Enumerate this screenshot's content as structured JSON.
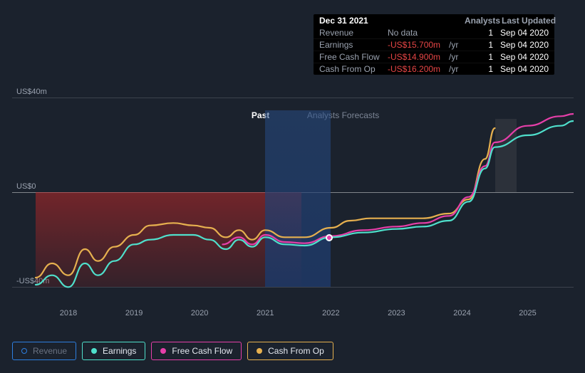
{
  "tooltip": {
    "date": "Dec 31 2021",
    "header_analysts": "Analysts",
    "header_updated": "Last Updated",
    "rows": [
      {
        "label": "Revenue",
        "value": "No data",
        "suffix": "",
        "neg": false,
        "nodata": true,
        "analysts": "1",
        "updated": "Sep 04 2020"
      },
      {
        "label": "Earnings",
        "value": "-US$15.700m",
        "suffix": "/yr",
        "neg": true,
        "nodata": false,
        "analysts": "1",
        "updated": "Sep 04 2020"
      },
      {
        "label": "Free Cash Flow",
        "value": "-US$14.900m",
        "suffix": "/yr",
        "neg": true,
        "nodata": false,
        "analysts": "1",
        "updated": "Sep 04 2020"
      },
      {
        "label": "Cash From Op",
        "value": "-US$16.200m",
        "suffix": "/yr",
        "neg": true,
        "nodata": false,
        "analysts": "1",
        "updated": "Sep 04 2020"
      }
    ]
  },
  "chart": {
    "y_axis": {
      "labels": [
        {
          "text": "US$40m",
          "value": 40
        },
        {
          "text": "US$0",
          "value": 0
        },
        {
          "text": "-US$40m",
          "value": -40
        }
      ],
      "min": -45,
      "max": 45
    },
    "x_axis": {
      "ticks": [
        "2018",
        "2019",
        "2020",
        "2021",
        "2022",
        "2023",
        "2024",
        "2025"
      ],
      "min": 2017.5,
      "max": 2025.7
    },
    "past_label": "Past",
    "forecast_label": "Analysts Forecasts",
    "split_x": 2021.55,
    "highlight": {
      "from": 2021.0,
      "to": 2022.0
    },
    "marker_x": 2021.98,
    "series": {
      "earnings": {
        "color": "#4fe0cc",
        "points": [
          [
            2017.5,
            -39
          ],
          [
            2017.75,
            -35
          ],
          [
            2018.0,
            -40
          ],
          [
            2018.25,
            -30
          ],
          [
            2018.45,
            -35
          ],
          [
            2018.7,
            -29
          ],
          [
            2019.0,
            -22
          ],
          [
            2019.25,
            -20
          ],
          [
            2019.6,
            -18
          ],
          [
            2019.9,
            -18
          ],
          [
            2020.15,
            -20
          ],
          [
            2020.4,
            -24
          ],
          [
            2020.6,
            -20
          ],
          [
            2020.8,
            -23
          ],
          [
            2021.0,
            -19
          ],
          [
            2021.3,
            -22
          ],
          [
            2021.6,
            -22.5
          ],
          [
            2022.0,
            -19
          ],
          [
            2022.5,
            -17
          ],
          [
            2023.0,
            -15.5
          ],
          [
            2023.4,
            -14.5
          ],
          [
            2023.8,
            -12
          ],
          [
            2024.1,
            -4
          ],
          [
            2024.35,
            10
          ],
          [
            2024.5,
            19
          ],
          [
            2025.0,
            24
          ],
          [
            2025.5,
            28
          ],
          [
            2025.7,
            30
          ]
        ]
      },
      "fcf": {
        "color": "#e63fa9",
        "points": [
          [
            2020.35,
            -22
          ],
          [
            2020.6,
            -19
          ],
          [
            2020.8,
            -22
          ],
          [
            2021.0,
            -18
          ],
          [
            2021.3,
            -21
          ],
          [
            2021.6,
            -21.5
          ],
          [
            2022.0,
            -18.5
          ],
          [
            2022.5,
            -16
          ],
          [
            2023.0,
            -14.5
          ],
          [
            2023.4,
            -13
          ],
          [
            2023.8,
            -10
          ],
          [
            2024.1,
            -2
          ],
          [
            2024.35,
            11
          ],
          [
            2024.5,
            21
          ],
          [
            2025.0,
            28
          ],
          [
            2025.5,
            32
          ],
          [
            2025.7,
            33
          ]
        ]
      },
      "cashop": {
        "color": "#e6b04f",
        "points": [
          [
            2017.5,
            -36
          ],
          [
            2017.75,
            -30
          ],
          [
            2018.0,
            -35
          ],
          [
            2018.25,
            -24
          ],
          [
            2018.45,
            -29
          ],
          [
            2018.7,
            -23
          ],
          [
            2019.0,
            -18
          ],
          [
            2019.25,
            -14
          ],
          [
            2019.6,
            -13
          ],
          [
            2019.9,
            -14
          ],
          [
            2020.15,
            -15
          ],
          [
            2020.4,
            -19
          ],
          [
            2020.6,
            -16
          ],
          [
            2020.8,
            -20
          ],
          [
            2021.0,
            -16
          ],
          [
            2021.3,
            -19
          ],
          [
            2021.6,
            -19
          ],
          [
            2022.0,
            -15
          ],
          [
            2022.3,
            -12
          ],
          [
            2022.6,
            -11
          ],
          [
            2023.0,
            -11
          ],
          [
            2023.4,
            -11
          ],
          [
            2023.8,
            -9
          ],
          [
            2024.1,
            -3
          ],
          [
            2024.35,
            14
          ],
          [
            2024.5,
            27
          ]
        ]
      }
    }
  },
  "legend": {
    "items": [
      {
        "label": "Revenue",
        "color": "#2d7fe0",
        "inactive": true
      },
      {
        "label": "Earnings",
        "color": "#4fe0cc",
        "inactive": false
      },
      {
        "label": "Free Cash Flow",
        "color": "#e63fa9",
        "inactive": false
      },
      {
        "label": "Cash From Op",
        "color": "#e6b04f",
        "inactive": false
      }
    ]
  },
  "colors": {
    "bg": "#1b222d",
    "text_muted": "#9aa2af",
    "neg": "#e64545"
  }
}
